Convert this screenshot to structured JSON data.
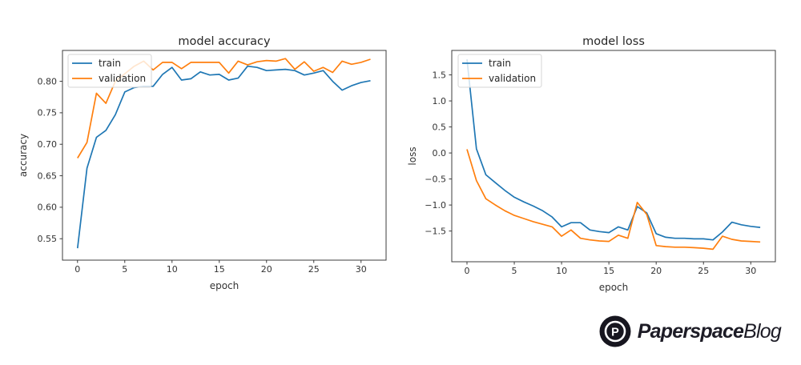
{
  "page": {
    "background": "#ffffff"
  },
  "logo": {
    "brand_bold": "Paperspace",
    "brand_light": "Blog",
    "mark_letter": "P",
    "text_color": "#1d1c26",
    "mark_bg": "#17161f"
  },
  "chart_data": [
    {
      "id": "accuracy",
      "type": "line",
      "title": "model accuracy",
      "xlabel": "epoch",
      "ylabel": "accuracy",
      "grid": false,
      "xlim": [
        -1.59,
        32.65
      ],
      "ylim": [
        0.516,
        0.849
      ],
      "xticks": {
        "values": [
          0,
          5,
          10,
          15,
          20,
          25,
          30
        ],
        "labels": [
          "0",
          "5",
          "10",
          "15",
          "20",
          "25",
          "30"
        ]
      },
      "yticks": {
        "values": [
          0.55,
          0.6,
          0.65,
          0.7,
          0.75,
          0.8
        ],
        "labels": [
          "0.55",
          "0.60",
          "0.65",
          "0.70",
          "0.75",
          "0.80"
        ]
      },
      "legend": {
        "position": "upper left"
      },
      "x": [
        0,
        1,
        2,
        3,
        4,
        5,
        6,
        7,
        8,
        9,
        10,
        11,
        12,
        13,
        14,
        15,
        16,
        17,
        18,
        19,
        20,
        21,
        22,
        23,
        24,
        25,
        26,
        27,
        28,
        29,
        30,
        31
      ],
      "series": [
        {
          "name": "train",
          "color": "#1f77b4",
          "values": [
            0.535,
            0.662,
            0.711,
            0.722,
            0.747,
            0.783,
            0.79,
            0.792,
            0.792,
            0.811,
            0.822,
            0.802,
            0.804,
            0.815,
            0.81,
            0.811,
            0.802,
            0.805,
            0.824,
            0.822,
            0.817,
            0.818,
            0.819,
            0.817,
            0.81,
            0.813,
            0.817,
            0.8,
            0.786,
            0.793,
            0.798,
            0.801
          ]
        },
        {
          "name": "validation",
          "color": "#ff7f0e",
          "values": [
            0.678,
            0.703,
            0.781,
            0.765,
            0.8,
            0.812,
            0.824,
            0.832,
            0.818,
            0.83,
            0.83,
            0.82,
            0.83,
            0.83,
            0.83,
            0.83,
            0.813,
            0.832,
            0.826,
            0.831,
            0.833,
            0.832,
            0.836,
            0.819,
            0.831,
            0.816,
            0.822,
            0.814,
            0.832,
            0.827,
            0.83,
            0.835
          ]
        }
      ]
    },
    {
      "id": "loss",
      "type": "line",
      "title": "model loss",
      "xlabel": "epoch",
      "ylabel": "loss",
      "grid": false,
      "xlim": [
        -1.61,
        32.6
      ],
      "ylim": [
        -2.09,
        1.97
      ],
      "xticks": {
        "values": [
          0,
          5,
          10,
          15,
          20,
          25,
          30
        ],
        "labels": [
          "0",
          "5",
          "10",
          "15",
          "20",
          "25",
          "30"
        ]
      },
      "yticks": {
        "values": [
          1.5,
          1.0,
          0.5,
          0.0,
          -0.5,
          -1.0,
          -1.5
        ],
        "labels": [
          "1.5",
          "1.0",
          "0.5",
          "0.0",
          "−0.5",
          "−1.0",
          "−1.5"
        ]
      },
      "legend": {
        "position": "upper left"
      },
      "x": [
        0,
        1,
        2,
        3,
        4,
        5,
        6,
        7,
        8,
        9,
        10,
        11,
        12,
        13,
        14,
        15,
        16,
        17,
        18,
        19,
        20,
        21,
        22,
        23,
        24,
        25,
        26,
        27,
        28,
        29,
        30,
        31
      ],
      "series": [
        {
          "name": "train",
          "color": "#1f77b4",
          "values": [
            1.8,
            0.08,
            -0.42,
            -0.57,
            -0.72,
            -0.85,
            -0.94,
            -1.02,
            -1.11,
            -1.23,
            -1.42,
            -1.34,
            -1.34,
            -1.48,
            -1.51,
            -1.53,
            -1.42,
            -1.48,
            -1.03,
            -1.15,
            -1.55,
            -1.62,
            -1.64,
            -1.64,
            -1.65,
            -1.65,
            -1.67,
            -1.52,
            -1.33,
            -1.38,
            -1.41,
            -1.43
          ]
        },
        {
          "name": "validation",
          "color": "#ff7f0e",
          "values": [
            0.07,
            -0.53,
            -0.88,
            -1.0,
            -1.11,
            -1.2,
            -1.26,
            -1.32,
            -1.37,
            -1.42,
            -1.6,
            -1.48,
            -1.64,
            -1.67,
            -1.69,
            -1.7,
            -1.58,
            -1.64,
            -0.95,
            -1.18,
            -1.78,
            -1.8,
            -1.81,
            -1.81,
            -1.82,
            -1.83,
            -1.85,
            -1.6,
            -1.66,
            -1.69,
            -1.7,
            -1.71
          ]
        }
      ]
    }
  ]
}
